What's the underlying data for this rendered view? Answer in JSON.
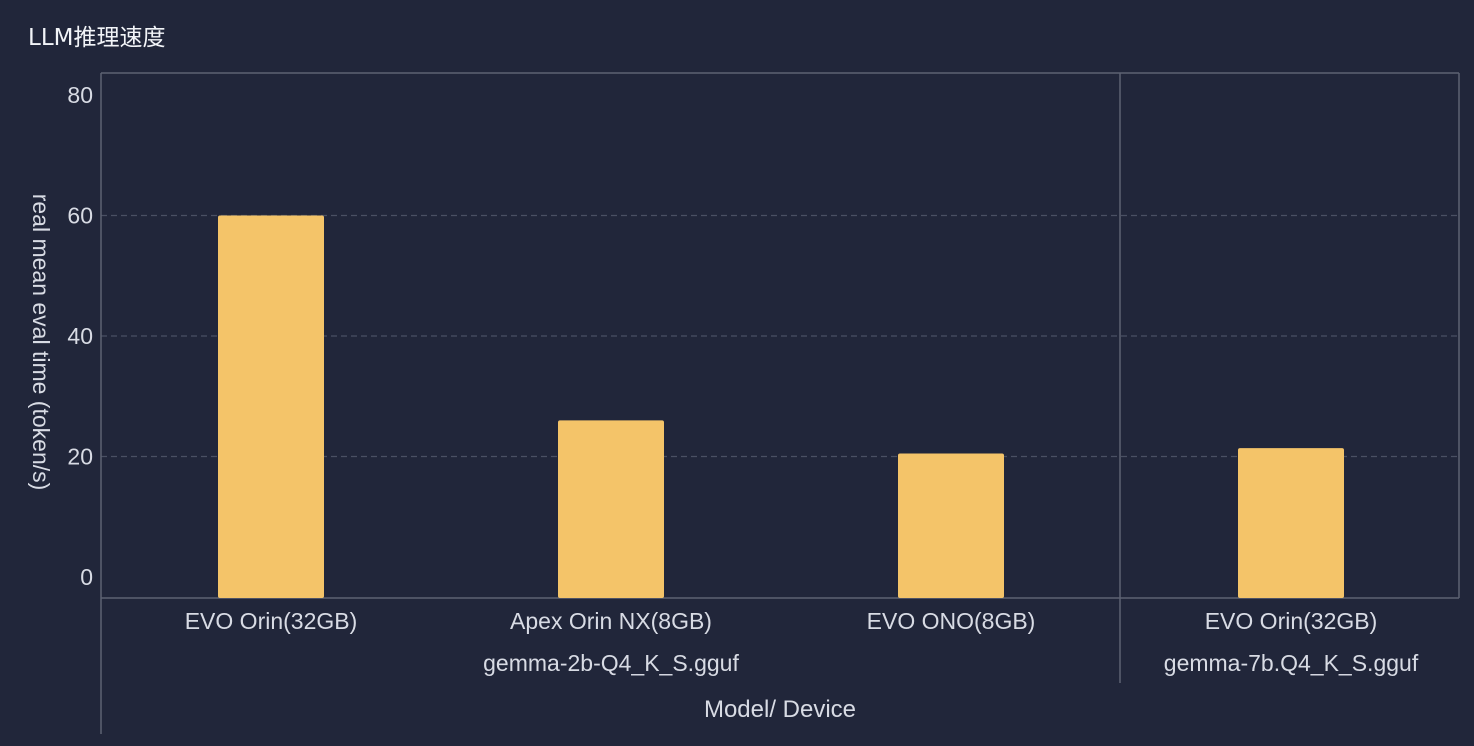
{
  "title": "LLM推理速度",
  "chart_data": {
    "type": "bar",
    "title": "LLM推理速度",
    "xlabel": "Model/ Device",
    "ylabel": "real mean eval time  (token/s)",
    "ylim": [
      0,
      80
    ],
    "yticks": [
      0,
      20,
      40,
      60,
      80
    ],
    "grid": true,
    "groups": [
      {
        "name": "gemma-2b-Q4_K_S.gguf",
        "categories": [
          "EVO Orin(32GB)",
          "Apex Orin NX(8GB)",
          "EVO ONO(8GB)"
        ],
        "values": [
          60,
          26,
          20.5
        ]
      },
      {
        "name": "gemma-7b.Q4_K_S.gguf",
        "categories": [
          "EVO Orin(32GB)"
        ],
        "values": [
          21.4
        ]
      }
    ],
    "colors": {
      "bar": "#f4c469",
      "background": "#21263a",
      "text": "#d8dbe4",
      "axis": "#5d6273",
      "grid": "#4a5063"
    }
  }
}
